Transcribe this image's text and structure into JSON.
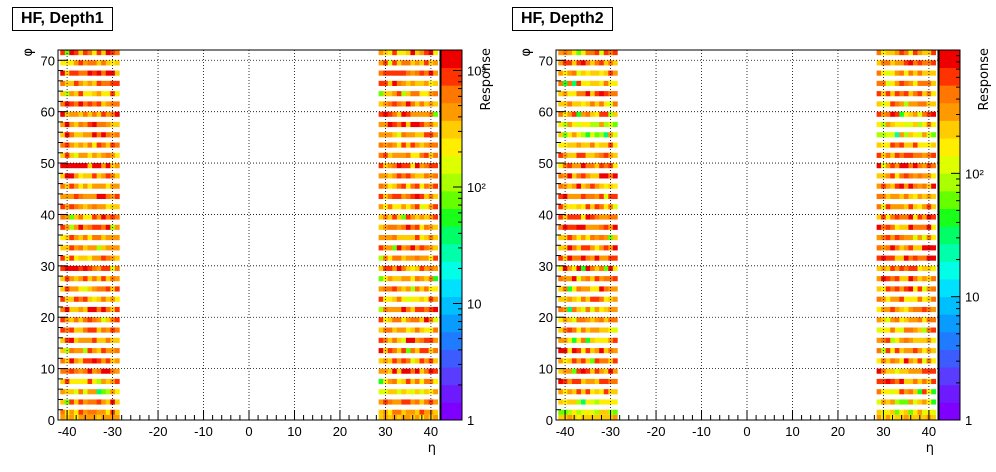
{
  "chart_data": [
    {
      "type": "heatmap",
      "title": "HF, Depth1",
      "xlabel": "η",
      "ylabel": "φ",
      "zlabel": "Response",
      "xlim": [
        -42,
        42
      ],
      "ylim": [
        0,
        72
      ],
      "z_scale": "log",
      "zlim": [
        1,
        1500
      ],
      "x_ticks": [
        "-40",
        "-30",
        "-20",
        "-10",
        "0",
        "10",
        "20",
        "30",
        "40"
      ],
      "y_ticks": [
        "0",
        "10",
        "20",
        "30",
        "40",
        "50",
        "60",
        "70"
      ],
      "z_ticks": [
        "1",
        "10",
        "10²",
        "10³"
      ],
      "grid": true,
      "seed": 7,
      "filled_eta_ranges": [
        [
          -41,
          -29
        ],
        [
          29,
          41
        ]
      ],
      "filled_phi_rows": "odd rows 1–71 (every second row)",
      "typical_response_range": [
        250,
        1200
      ]
    },
    {
      "type": "heatmap",
      "title": "HF, Depth2",
      "xlabel": "η",
      "ylabel": "φ",
      "zlabel": "Response",
      "xlim": [
        -42,
        42
      ],
      "ylim": [
        0,
        72
      ],
      "z_scale": "log",
      "zlim": [
        1,
        1000
      ],
      "x_ticks": [
        "-40",
        "-30",
        "-20",
        "-10",
        "0",
        "10",
        "20",
        "30",
        "40"
      ],
      "y_ticks": [
        "0",
        "10",
        "20",
        "30",
        "40",
        "50",
        "60",
        "70"
      ],
      "z_ticks": [
        "1",
        "10",
        "10²"
      ],
      "grid": true,
      "seed": 19,
      "filled_eta_ranges": [
        [
          -41,
          -29
        ],
        [
          29,
          41
        ]
      ],
      "filled_phi_rows": "odd rows 1–71 (every second row)",
      "typical_response_range": [
        150,
        800
      ]
    }
  ]
}
